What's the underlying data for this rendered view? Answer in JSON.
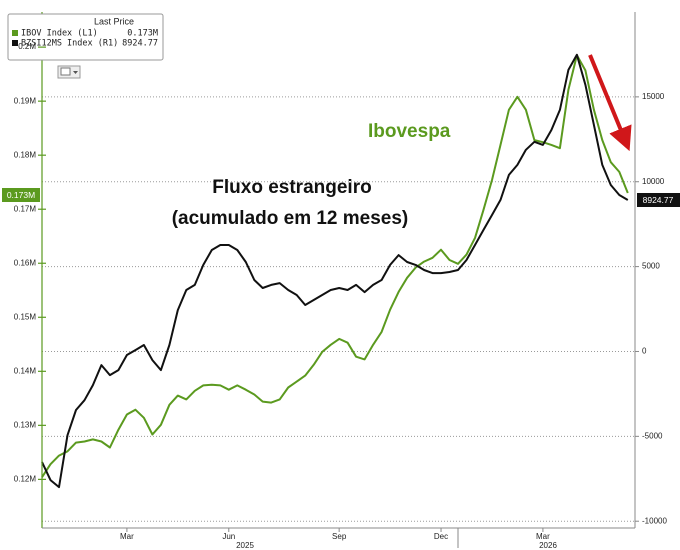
{
  "chart_data": {
    "type": "line",
    "legend_title": "Last Price",
    "categories": [
      null,
      null,
      null,
      null,
      null,
      null,
      null,
      null,
      null,
      null,
      "Mar",
      null,
      null,
      null,
      null,
      null,
      null,
      null,
      null,
      null,
      null,
      null,
      "Jun",
      null,
      null,
      null,
      null,
      null,
      null,
      null,
      null,
      null,
      null,
      null,
      null,
      "Sep",
      null,
      null,
      null,
      null,
      null,
      null,
      null,
      null,
      null,
      null,
      null,
      "Dec",
      null,
      null,
      null,
      null,
      null,
      null,
      null,
      null,
      null,
      null,
      null,
      "Mar",
      null,
      null,
      null,
      null,
      null,
      null,
      null,
      null,
      null,
      null
    ],
    "year_labels": [
      "2025",
      "2026"
    ],
    "series": [
      {
        "name": "IBOV Index  (L1)",
        "color": "#5b9a1f",
        "axis": "y",
        "last_price_label": "0.173M",
        "values": [
          120400,
          122800,
          124400,
          125200,
          126800,
          127000,
          127400,
          127000,
          125900,
          129200,
          132000,
          132900,
          131400,
          128300,
          130100,
          133800,
          135500,
          134800,
          136400,
          137400,
          137500,
          137400,
          136600,
          137400,
          136600,
          135700,
          134400,
          134200,
          134800,
          137000,
          138100,
          139200,
          141200,
          143600,
          144900,
          146000,
          145300,
          142700,
          142200,
          144900,
          147300,
          151400,
          154700,
          157300,
          159200,
          160300,
          161000,
          162500,
          160600,
          159900,
          161600,
          164700,
          169900,
          175400,
          181900,
          188400,
          190800,
          188400,
          182800,
          182400,
          181900,
          181300,
          192100,
          198500,
          195700,
          188400,
          182800,
          178700,
          176900,
          173000
        ]
      },
      {
        "name": "BZSI12MS Index  (R1)",
        "color": "#111111",
        "axis": "y2",
        "values": [
          -6520,
          -7580,
          -7990,
          -4930,
          -3450,
          -2870,
          -1980,
          -800,
          -1390,
          -1100,
          -210,
          80,
          380,
          -510,
          -1100,
          380,
          2440,
          3620,
          3920,
          5100,
          5980,
          6270,
          6270,
          5980,
          5270,
          4210,
          3740,
          3920,
          4030,
          3620,
          3330,
          2740,
          3030,
          3330,
          3620,
          3740,
          3620,
          3920,
          3500,
          3920,
          4210,
          5100,
          5680,
          5270,
          5100,
          4800,
          4620,
          4620,
          4680,
          4800,
          5390,
          6270,
          7160,
          8040,
          8930,
          10400,
          10990,
          11880,
          12350,
          12170,
          13050,
          14230,
          16590,
          17480,
          15710,
          13350,
          10990,
          9810,
          9220,
          8924.77
        ]
      }
    ],
    "ylim": [
      111000,
      206500
    ],
    "yticks": [
      {
        "value": 120000,
        "label": "0.12M"
      },
      {
        "value": 130000,
        "label": "0.13M"
      },
      {
        "value": 140000,
        "label": "0.14M"
      },
      {
        "value": 150000,
        "label": "0.15M"
      },
      {
        "value": 160000,
        "label": "0.16M"
      },
      {
        "value": 170000,
        "label": "0.17M"
      },
      {
        "value": 180000,
        "label": "0.18M"
      },
      {
        "value": 190000,
        "label": "0.19M"
      },
      {
        "value": 200000,
        "label": "0.2M"
      }
    ],
    "y2lim": [
      -10400,
      20000
    ],
    "y2ticks": [
      -10000,
      -5000,
      0,
      5000,
      10000,
      15000
    ],
    "grid": true,
    "annotations": [
      "Ibovespa",
      "Fluxo estrangeiro",
      "(acumulado em 12 meses)"
    ]
  }
}
